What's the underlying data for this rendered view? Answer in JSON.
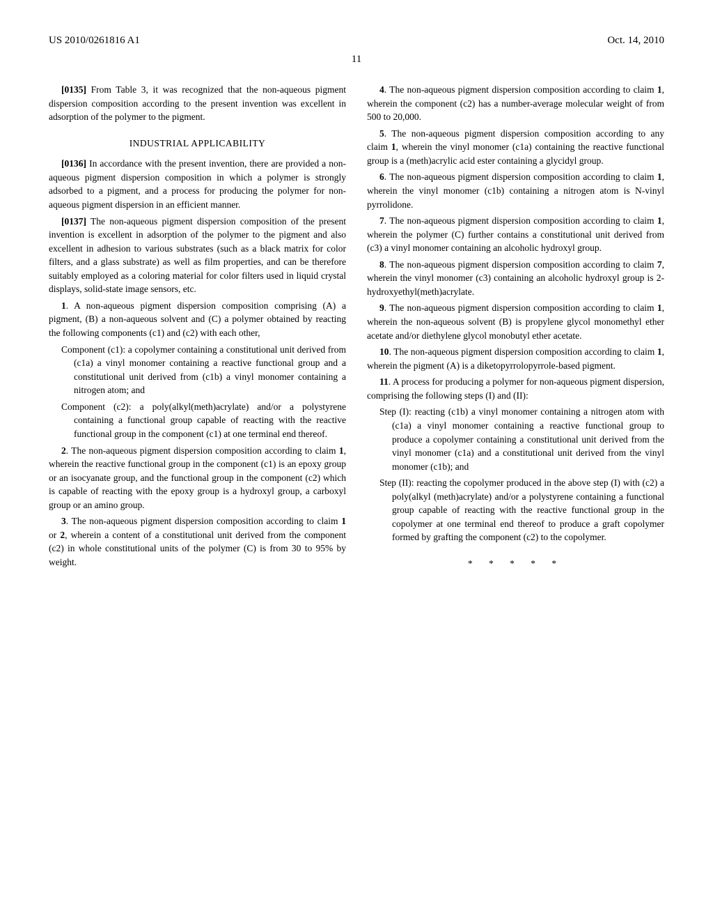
{
  "header": {
    "pub_number": "US 2010/0261816 A1",
    "pub_date": "Oct. 14, 2010"
  },
  "page_number": "11",
  "left_column": {
    "para_0135_num": "[0135]",
    "para_0135_text": " From Table 3, it was recognized that the non-aqueous pigment dispersion composition according to the present invention was excellent in adsorption of the polymer to the pigment.",
    "section_heading": "INDUSTRIAL APPLICABILITY",
    "para_0136_num": "[0136]",
    "para_0136_text": " In accordance with the present invention, there are provided a non-aqueous pigment dispersion composition in which a polymer is strongly adsorbed to a pigment, and a process for producing the polymer for non-aqueous pigment dispersion in an efficient manner.",
    "para_0137_num": "[0137]",
    "para_0137_text": " The non-aqueous pigment dispersion composition of the present invention is excellent in adsorption of the polymer to the pigment and also excellent in adhesion to various substrates (such as a black matrix for color filters, and a glass substrate) as well as film properties, and can be therefore suitably employed as a coloring material for color filters used in liquid crystal displays, solid-state image sensors, etc.",
    "claim1_num": "1",
    "claim1_text": ". A non-aqueous pigment dispersion composition comprising (A) a pigment, (B) a non-aqueous solvent and (C) a polymer obtained by reacting the following components (c1) and (c2) with each other,",
    "claim1_sub1": "Component (c1): a copolymer containing a constitutional unit derived from (c1a) a vinyl monomer containing a reactive functional group and a constitutional unit derived from (c1b) a vinyl monomer containing a nitrogen atom; and",
    "claim1_sub2": "Component (c2): a poly(alkyl(meth)acrylate) and/or a polystyrene containing a functional group capable of reacting with the reactive functional group in the component (c1) at one terminal end thereof.",
    "claim2_num": "2",
    "claim2_text": ". The non-aqueous pigment dispersion composition according to claim ",
    "claim2_ref": "1",
    "claim2_text2": ", wherein the reactive functional group in the component (c1) is an epoxy group or an isocyanate group, and the functional group in the component (c2) which is capable of reacting with the epoxy group is a hydroxyl group, a carboxyl group or an amino group.",
    "claim3_num": "3",
    "claim3_text": ". The non-aqueous pigment dispersion composition according to claim ",
    "claim3_ref": "1",
    "claim3_text2": " or ",
    "claim3_ref2": "2",
    "claim3_text3": ", wherein a content of a constitutional unit derived from the component (c2) in whole constitutional units of the polymer (C) is from 30 to 95% by weight."
  },
  "right_column": {
    "claim4_num": "4",
    "claim4_text": ". The non-aqueous pigment dispersion composition according to claim ",
    "claim4_ref": "1",
    "claim4_text2": ", wherein the component (c2) has a number-average molecular weight of from 500 to 20,000.",
    "claim5_num": "5",
    "claim5_text": ". The non-aqueous pigment dispersion composition according to any claim ",
    "claim5_ref": "1",
    "claim5_text2": ", wherein the vinyl monomer (c1a) containing the reactive functional group is a (meth)acrylic acid ester containing a glycidyl group.",
    "claim6_num": "6",
    "claim6_text": ". The non-aqueous pigment dispersion composition according to claim ",
    "claim6_ref": "1",
    "claim6_text2": ", wherein the vinyl monomer (c1b) containing a nitrogen atom is N-vinyl pyrrolidone.",
    "claim7_num": "7",
    "claim7_text": ". The non-aqueous pigment dispersion composition according to claim ",
    "claim7_ref": "1",
    "claim7_text2": ", wherein the polymer (C) further contains a constitutional unit derived from (c3) a vinyl monomer containing an alcoholic hydroxyl group.",
    "claim8_num": "8",
    "claim8_text": ". The non-aqueous pigment dispersion composition according to claim ",
    "claim8_ref": "7",
    "claim8_text2": ", wherein the vinyl monomer (c3) containing an alcoholic hydroxyl group is 2-hydroxyethyl(meth)acrylate.",
    "claim9_num": "9",
    "claim9_text": ". The non-aqueous pigment dispersion composition according to claim ",
    "claim9_ref": "1",
    "claim9_text2": ", wherein the non-aqueous solvent (B) is propylene glycol monomethyl ether acetate and/or diethylene glycol monobutyl ether acetate.",
    "claim10_num": "10",
    "claim10_text": ". The non-aqueous pigment dispersion composition according to claim ",
    "claim10_ref": "1",
    "claim10_text2": ", wherein the pigment (A) is a diketopyrrolopyrrole-based pigment.",
    "claim11_num": "11",
    "claim11_text": ". A process for producing a polymer for non-aqueous pigment dispersion, comprising the following steps (I) and (II):",
    "claim11_sub1": "Step (I): reacting (c1b) a vinyl monomer containing a nitrogen atom with (c1a) a vinyl monomer containing a reactive functional group to produce a copolymer containing a constitutional unit derived from the vinyl monomer (c1a) and a constitutional unit derived from the vinyl monomer (c1b); and",
    "claim11_sub2": "Step (II): reacting the copolymer produced in the above step (I) with (c2) a poly(alkyl (meth)acrylate) and/or a polystyrene containing a functional group capable of reacting with the reactive functional group in the copolymer at one terminal end thereof to produce a graft copolymer formed by grafting the component (c2) to the copolymer.",
    "end_stars": "* * * * *"
  }
}
